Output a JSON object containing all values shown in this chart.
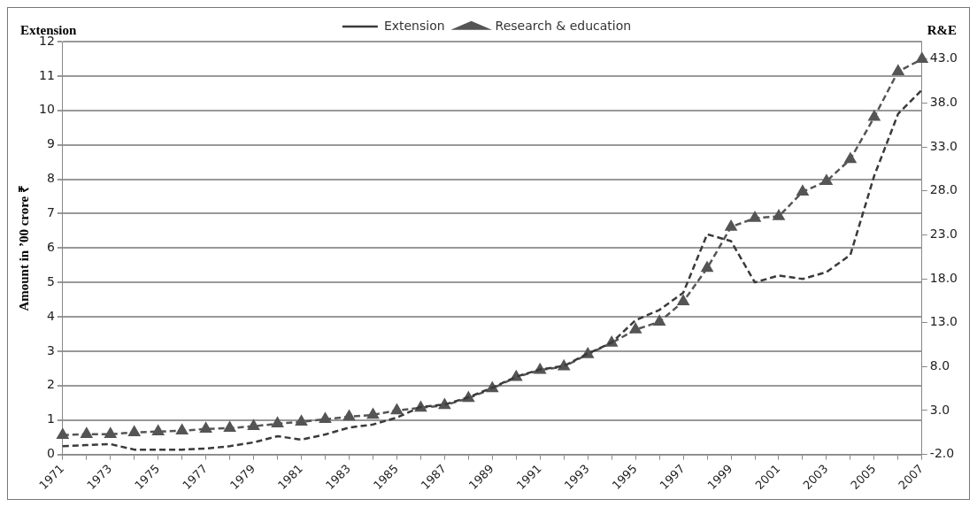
{
  "chart_data": {
    "type": "line",
    "categories": [
      "1971",
      null,
      "1973",
      null,
      "1975",
      null,
      "1977",
      null,
      "1979",
      null,
      "1981",
      null,
      "1983",
      null,
      "1985",
      null,
      "1987",
      null,
      "1989",
      null,
      "1991",
      null,
      "1993",
      null,
      "1995",
      null,
      "1997",
      null,
      "1999",
      null,
      "2001",
      null,
      "2003",
      null,
      "2005",
      null,
      "2007"
    ],
    "series": [
      {
        "name": "Extension",
        "color": "#3a3a3a",
        "line_style": "dashed",
        "marker": "none",
        "values": [
          0.24,
          0.27,
          0.3,
          0.14,
          0.14,
          0.14,
          0.17,
          0.24,
          0.35,
          0.53,
          0.43,
          0.58,
          0.78,
          0.87,
          1.07,
          1.38,
          1.45,
          1.66,
          1.94,
          2.26,
          2.47,
          2.57,
          2.93,
          3.25,
          3.9,
          4.2,
          4.7,
          6.4,
          6.2,
          5.0,
          5.2,
          5.1,
          5.3,
          5.8,
          8.1,
          9.9,
          10.6
        ]
      },
      {
        "name": "Research & education",
        "color": "#555555",
        "line_style": "dashed",
        "marker": "triangle",
        "axis": "y2",
        "values": [
          0.2,
          0.3,
          0.3,
          0.5,
          0.6,
          0.7,
          0.9,
          1.0,
          1.2,
          1.5,
          1.7,
          2.0,
          2.3,
          2.5,
          3.0,
          3.3,
          3.6,
          4.4,
          5.5,
          6.8,
          7.6,
          8.0,
          9.4,
          10.7,
          12.2,
          13.1,
          15.4,
          19.2,
          23.9,
          24.9,
          25.1,
          27.9,
          29.1,
          31.6,
          36.4,
          41.6,
          43.0
        ]
      }
    ],
    "ylabel": "Amount in ’00 crore ₹",
    "y2label": "R&E",
    "annotations": [
      "Extension"
    ],
    "ylim": [
      0,
      12
    ],
    "yticks": [
      0,
      1,
      2,
      3,
      4,
      5,
      6,
      7,
      8,
      9,
      10,
      11,
      12
    ],
    "y2lim": [
      -2,
      45
    ],
    "y2ticks": [
      {
        "value": -2,
        "label": "-2.0"
      },
      {
        "value": 3,
        "label": "3.0"
      },
      {
        "value": 8,
        "label": "8.0"
      },
      {
        "value": 13,
        "label": "13.0"
      },
      {
        "value": 18,
        "label": "18.0"
      },
      {
        "value": 23,
        "label": "23.0"
      },
      {
        "value": 28,
        "label": "28.0"
      },
      {
        "value": 33,
        "label": "33.0"
      },
      {
        "value": 38,
        "label": "38.0"
      },
      {
        "value": 43,
        "label": "43.0"
      }
    ],
    "grid": "y",
    "legend": "top"
  }
}
